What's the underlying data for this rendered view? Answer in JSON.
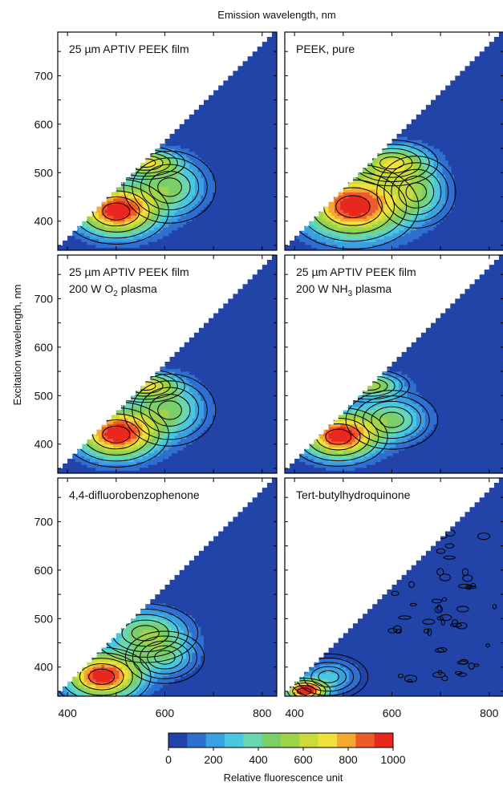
{
  "figure": {
    "x_axis_title": "Emission wavelength, nm",
    "y_axis_title": "Excitation wavelength, nm",
    "colorbar_title": "Relative fluorescence unit"
  },
  "chart_data": {
    "type": "heatmap",
    "subtype": "excitation-emission matrix with contour lines",
    "x_range": [
      380,
      830
    ],
    "y_range": [
      340,
      790
    ],
    "x_ticks": [
      400,
      600,
      800
    ],
    "y_ticks": [
      400,
      500,
      600,
      700
    ],
    "colorbar": {
      "range": [
        0,
        1000
      ],
      "ticks": [
        0,
        200,
        400,
        600,
        800,
        1000
      ],
      "colors": [
        "#2244a8",
        "#2f6fd0",
        "#3aa0e0",
        "#48c8e0",
        "#6ad6b0",
        "#7acf6a",
        "#9dd44a",
        "#c9dc3a",
        "#f0e03a",
        "#f5a830",
        "#ef5a2a",
        "#e8281f"
      ]
    },
    "panels": [
      {
        "title": [
          "25 µm APTIV PEEK film"
        ],
        "hot": [
          [
            500,
            420,
            80,
            50,
            1000
          ],
          [
            560,
            520,
            60,
            25,
            560
          ],
          [
            610,
            470,
            70,
            55,
            420
          ]
        ],
        "noise": 0
      },
      {
        "title": [
          "PEEK, pure"
        ],
        "hot": [
          [
            520,
            430,
            100,
            65,
            1000
          ],
          [
            600,
            520,
            70,
            35,
            560
          ],
          [
            650,
            460,
            60,
            55,
            380
          ]
        ],
        "noise": 0
      },
      {
        "title": [
          "25 µm APTIV PEEK film",
          "200 W O2 plasma"
        ],
        "hot": [
          [
            500,
            420,
            80,
            50,
            1000
          ],
          [
            560,
            520,
            60,
            25,
            560
          ],
          [
            610,
            470,
            70,
            55,
            420
          ]
        ],
        "noise": 0
      },
      {
        "title": [
          "25 µm APTIV PEEK film",
          "200 W NH3 plasma"
        ],
        "hot": [
          [
            490,
            415,
            75,
            45,
            1000
          ],
          [
            555,
            520,
            60,
            25,
            540
          ],
          [
            600,
            450,
            70,
            45,
            400
          ]
        ],
        "noise": 0
      },
      {
        "title": [
          "4,4-difluorobenzophenone"
        ],
        "hot": [
          [
            470,
            380,
            75,
            45,
            1000
          ],
          [
            560,
            470,
            80,
            45,
            480
          ],
          [
            600,
            420,
            60,
            40,
            300
          ]
        ],
        "noise": 0
      },
      {
        "title": [
          "Tert-butylhydroquinone"
        ],
        "hot": [
          [
            420,
            350,
            40,
            20,
            1000
          ],
          [
            470,
            380,
            60,
            35,
            260
          ]
        ],
        "noise": 1
      }
    ]
  }
}
